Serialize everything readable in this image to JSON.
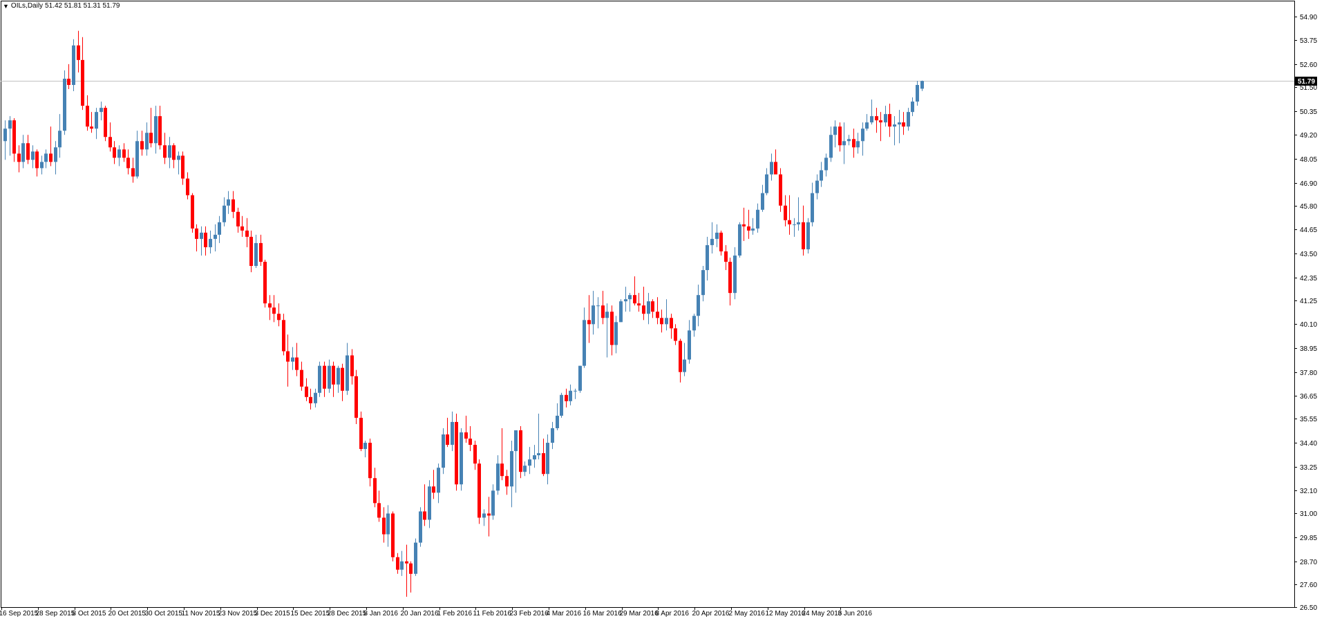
{
  "header": {
    "collapse_icon": "triangle-down-icon",
    "symbol_label": "OILs,Daily",
    "ohlc_text": "51.42 51.81 51.31 51.79"
  },
  "colors": {
    "bull": "#4682B4",
    "bear": "#FF0000",
    "price_line": "#C0C0C0",
    "axis": "#000000",
    "background": "#FFFFFF"
  },
  "chart_data": {
    "type": "candlestick",
    "symbol": "OILs",
    "timeframe": "Daily",
    "last_price": 51.79,
    "last_price_label": "51.79",
    "ylim": [
      26.5,
      55.65
    ],
    "y_ticks": [
      "54.90",
      "53.75",
      "52.60",
      "51.50",
      "50.35",
      "49.20",
      "48.05",
      "46.90",
      "45.80",
      "44.65",
      "43.50",
      "42.35",
      "41.25",
      "40.10",
      "38.95",
      "37.80",
      "36.65",
      "35.55",
      "34.40",
      "33.25",
      "32.10",
      "31.00",
      "29.85",
      "28.70",
      "27.60",
      "26.50"
    ],
    "x_ticks": [
      {
        "label": "16 Sep 2015",
        "index": 0
      },
      {
        "label": "28 Sep 2015",
        "index": 8
      },
      {
        "label": "8 Oct 2015",
        "index": 16
      },
      {
        "label": "20 Oct 2015",
        "index": 24
      },
      {
        "label": "30 Oct 2015",
        "index": 32
      },
      {
        "label": "11 Nov 2015",
        "index": 40
      },
      {
        "label": "23 Nov 2015",
        "index": 48
      },
      {
        "label": "3 Dec 2015",
        "index": 56
      },
      {
        "label": "15 Dec 2015",
        "index": 64
      },
      {
        "label": "28 Dec 2015",
        "index": 72
      },
      {
        "label": "8 Jan 2016",
        "index": 80
      },
      {
        "label": "20 Jan 2016",
        "index": 88
      },
      {
        "label": "1 Feb 2016",
        "index": 96
      },
      {
        "label": "11 Feb 2016",
        "index": 104
      },
      {
        "label": "23 Feb 2016",
        "index": 112
      },
      {
        "label": "4 Mar 2016",
        "index": 120
      },
      {
        "label": "16 Mar 2016",
        "index": 128
      },
      {
        "label": "29 Mar 2016",
        "index": 136
      },
      {
        "label": "8 Apr 2016",
        "index": 144
      },
      {
        "label": "20 Apr 2016",
        "index": 152
      },
      {
        "label": "2 May 2016",
        "index": 160
      },
      {
        "label": "12 May 2016",
        "index": 168
      },
      {
        "label": "24 May 2016",
        "index": 176
      },
      {
        "label": "3 Jun 2016",
        "index": 184
      }
    ],
    "candles": [
      [
        48.9,
        49.9,
        48.0,
        49.5
      ],
      [
        49.5,
        50.1,
        48.2,
        49.9
      ],
      [
        49.9,
        50.0,
        47.9,
        48.3
      ],
      [
        48.3,
        48.7,
        47.4,
        47.9
      ],
      [
        47.9,
        49.2,
        47.6,
        48.8
      ],
      [
        48.8,
        49.2,
        47.8,
        48.0
      ],
      [
        48.0,
        48.7,
        47.6,
        48.4
      ],
      [
        48.4,
        48.5,
        47.2,
        47.6
      ],
      [
        47.6,
        48.2,
        47.3,
        47.9
      ],
      [
        47.9,
        48.5,
        47.6,
        48.3
      ],
      [
        48.3,
        49.6,
        47.7,
        47.9
      ],
      [
        47.9,
        48.9,
        47.3,
        48.6
      ],
      [
        48.6,
        50.2,
        48.1,
        49.4
      ],
      [
        49.4,
        52.3,
        49.2,
        51.9
      ],
      [
        51.9,
        52.6,
        51.4,
        51.6
      ],
      [
        51.6,
        53.8,
        51.3,
        53.5
      ],
      [
        53.5,
        54.2,
        52.2,
        52.8
      ],
      [
        52.8,
        53.9,
        50.4,
        50.6
      ],
      [
        50.6,
        51.1,
        49.4,
        49.6
      ],
      [
        49.6,
        50.3,
        49.3,
        49.5
      ],
      [
        49.5,
        50.5,
        49.0,
        50.3
      ],
      [
        50.3,
        50.8,
        49.9,
        50.5
      ],
      [
        50.5,
        50.6,
        48.9,
        49.1
      ],
      [
        49.1,
        49.8,
        48.4,
        48.6
      ],
      [
        48.6,
        48.9,
        47.8,
        48.1
      ],
      [
        48.1,
        48.7,
        47.7,
        48.5
      ],
      [
        48.5,
        48.8,
        47.9,
        48.1
      ],
      [
        48.1,
        48.5,
        47.3,
        47.6
      ],
      [
        47.6,
        48.1,
        46.9,
        47.2
      ],
      [
        47.2,
        49.4,
        47.1,
        48.9
      ],
      [
        48.9,
        49.4,
        48.2,
        48.5
      ],
      [
        48.5,
        49.8,
        48.2,
        49.3
      ],
      [
        49.3,
        50.5,
        48.6,
        48.8
      ],
      [
        48.8,
        50.6,
        48.3,
        50.1
      ],
      [
        50.1,
        50.6,
        48.5,
        48.7
      ],
      [
        48.7,
        49.3,
        47.8,
        48.1
      ],
      [
        48.1,
        49.1,
        47.6,
        48.7
      ],
      [
        48.7,
        48.8,
        47.6,
        48.0
      ],
      [
        48.0,
        48.4,
        47.3,
        48.2
      ],
      [
        48.2,
        48.4,
        46.8,
        47.1
      ],
      [
        47.1,
        47.4,
        46.1,
        46.3
      ],
      [
        46.3,
        46.4,
        44.5,
        44.7
      ],
      [
        44.7,
        44.9,
        43.6,
        44.2
      ],
      [
        44.2,
        44.8,
        43.4,
        44.5
      ],
      [
        44.5,
        44.8,
        43.4,
        43.8
      ],
      [
        43.8,
        44.6,
        43.5,
        44.2
      ],
      [
        44.2,
        44.9,
        43.6,
        44.4
      ],
      [
        44.4,
        45.3,
        44.0,
        45.0
      ],
      [
        45.0,
        46.2,
        44.8,
        45.8
      ],
      [
        45.8,
        46.5,
        45.4,
        46.1
      ],
      [
        46.1,
        46.5,
        45.2,
        45.5
      ],
      [
        45.5,
        45.7,
        44.5,
        44.8
      ],
      [
        44.8,
        45.3,
        44.3,
        44.6
      ],
      [
        44.6,
        45.2,
        43.8,
        44.3
      ],
      [
        44.3,
        44.6,
        42.6,
        42.9
      ],
      [
        42.9,
        44.4,
        42.8,
        44.0
      ],
      [
        44.0,
        44.4,
        42.9,
        43.1
      ],
      [
        43.1,
        43.2,
        40.9,
        41.1
      ],
      [
        41.1,
        41.5,
        40.3,
        40.9
      ],
      [
        40.9,
        41.5,
        40.2,
        40.6
      ],
      [
        40.6,
        41.1,
        40.0,
        40.3
      ],
      [
        40.3,
        40.6,
        38.6,
        38.8
      ],
      [
        38.8,
        39.6,
        37.1,
        38.3
      ],
      [
        38.3,
        39.0,
        37.9,
        38.5
      ],
      [
        38.5,
        39.2,
        37.6,
        37.9
      ],
      [
        37.9,
        38.3,
        36.9,
        37.1
      ],
      [
        37.1,
        37.5,
        36.4,
        36.6
      ],
      [
        36.6,
        37.0,
        36.0,
        36.3
      ],
      [
        36.3,
        37.0,
        36.1,
        36.8
      ],
      [
        36.8,
        38.3,
        36.6,
        38.1
      ],
      [
        38.1,
        38.3,
        36.6,
        37.0
      ],
      [
        37.0,
        38.4,
        36.8,
        38.1
      ],
      [
        38.1,
        38.3,
        36.6,
        37.2
      ],
      [
        37.2,
        38.1,
        36.8,
        38.0
      ],
      [
        38.0,
        38.2,
        36.4,
        36.9
      ],
      [
        36.9,
        39.2,
        36.7,
        38.6
      ],
      [
        38.6,
        38.9,
        37.2,
        37.6
      ],
      [
        37.6,
        37.9,
        35.3,
        35.6
      ],
      [
        35.6,
        35.9,
        34.0,
        34.1
      ],
      [
        34.1,
        34.5,
        33.7,
        34.4
      ],
      [
        34.4,
        34.6,
        32.3,
        32.7
      ],
      [
        32.7,
        33.2,
        31.3,
        31.5
      ],
      [
        31.5,
        32.1,
        30.6,
        30.8
      ],
      [
        30.8,
        31.3,
        29.6,
        30.0
      ],
      [
        30.0,
        31.4,
        29.4,
        31.0
      ],
      [
        31.0,
        31.1,
        28.7,
        28.9
      ],
      [
        28.9,
        29.1,
        28.1,
        28.3
      ],
      [
        28.3,
        29.2,
        28.0,
        28.7
      ],
      [
        28.7,
        29.5,
        27.0,
        28.6
      ],
      [
        28.6,
        28.7,
        27.2,
        28.1
      ],
      [
        28.1,
        29.8,
        28.0,
        29.6
      ],
      [
        29.6,
        31.3,
        29.4,
        31.1
      ],
      [
        31.1,
        32.4,
        30.4,
        30.7
      ],
      [
        30.7,
        32.6,
        30.3,
        32.3
      ],
      [
        32.3,
        33.1,
        31.7,
        32.0
      ],
      [
        32.0,
        33.4,
        31.5,
        33.2
      ],
      [
        33.2,
        35.1,
        32.9,
        34.8
      ],
      [
        34.8,
        35.6,
        34.2,
        34.3
      ],
      [
        34.3,
        35.9,
        34.0,
        35.4
      ],
      [
        35.4,
        35.8,
        32.1,
        32.4
      ],
      [
        32.4,
        35.1,
        32.1,
        34.9
      ],
      [
        34.9,
        35.7,
        34.4,
        34.6
      ],
      [
        34.6,
        35.2,
        34.0,
        34.3
      ],
      [
        34.3,
        34.5,
        33.1,
        33.4
      ],
      [
        33.4,
        33.6,
        30.5,
        30.8
      ],
      [
        30.8,
        31.2,
        30.4,
        31.0
      ],
      [
        31.0,
        31.8,
        29.9,
        30.9
      ],
      [
        30.9,
        32.4,
        30.7,
        32.1
      ],
      [
        32.1,
        33.8,
        31.9,
        33.4
      ],
      [
        33.4,
        35.1,
        32.6,
        32.8
      ],
      [
        32.8,
        33.1,
        31.9,
        32.3
      ],
      [
        32.3,
        34.5,
        31.3,
        34.0
      ],
      [
        34.0,
        35.0,
        32.0,
        35.0
      ],
      [
        35.0,
        35.2,
        32.7,
        33.0
      ],
      [
        33.0,
        33.5,
        32.8,
        33.3
      ],
      [
        33.3,
        34.2,
        32.9,
        33.6
      ],
      [
        33.6,
        34.3,
        33.2,
        33.8
      ],
      [
        33.8,
        35.8,
        33.6,
        33.9
      ],
      [
        33.9,
        34.6,
        32.8,
        32.9
      ],
      [
        32.9,
        34.8,
        32.4,
        34.4
      ],
      [
        34.4,
        35.4,
        34.1,
        35.1
      ],
      [
        35.1,
        36.3,
        35.0,
        35.7
      ],
      [
        35.7,
        36.8,
        35.6,
        36.7
      ],
      [
        36.7,
        37.0,
        36.1,
        36.4
      ],
      [
        36.4,
        37.2,
        36.2,
        36.9
      ],
      [
        36.9,
        37.0,
        36.5,
        36.9
      ],
      [
        36.9,
        38.1,
        36.8,
        38.1
      ],
      [
        38.1,
        40.9,
        38.0,
        40.3
      ],
      [
        40.3,
        41.5,
        39.2,
        40.1
      ],
      [
        40.1,
        41.7,
        39.6,
        41.0
      ],
      [
        41.0,
        41.4,
        39.9,
        41.0
      ],
      [
        41.0,
        41.7,
        40.1,
        40.4
      ],
      [
        40.4,
        41.1,
        38.5,
        40.7
      ],
      [
        40.7,
        41.0,
        38.6,
        39.1
      ],
      [
        39.1,
        40.5,
        38.7,
        40.2
      ],
      [
        40.2,
        41.3,
        40.2,
        41.2
      ],
      [
        41.2,
        41.9,
        40.7,
        41.3
      ],
      [
        41.3,
        41.6,
        40.7,
        41.5
      ],
      [
        41.5,
        42.4,
        41.0,
        41.1
      ],
      [
        41.1,
        41.6,
        40.7,
        41.0
      ],
      [
        41.0,
        41.9,
        40.3,
        40.6
      ],
      [
        40.6,
        41.6,
        40.1,
        41.2
      ],
      [
        41.2,
        41.3,
        40.4,
        40.7
      ],
      [
        40.7,
        41.4,
        40.1,
        40.4
      ],
      [
        40.4,
        40.8,
        39.7,
        40.1
      ],
      [
        40.1,
        41.3,
        39.8,
        40.4
      ],
      [
        40.4,
        40.6,
        39.4,
        39.9
      ],
      [
        39.9,
        40.1,
        39.1,
        39.3
      ],
      [
        39.3,
        39.4,
        37.3,
        37.8
      ],
      [
        37.8,
        39.2,
        37.6,
        38.4
      ],
      [
        38.4,
        40.3,
        38.2,
        39.8
      ],
      [
        39.8,
        40.6,
        39.5,
        40.5
      ],
      [
        40.5,
        42.0,
        40.0,
        41.5
      ],
      [
        41.5,
        42.9,
        41.2,
        42.7
      ],
      [
        42.7,
        44.3,
        42.2,
        43.9
      ],
      [
        43.9,
        45.0,
        43.5,
        44.2
      ],
      [
        44.2,
        44.9,
        43.8,
        44.5
      ],
      [
        44.5,
        44.6,
        43.4,
        43.6
      ],
      [
        43.6,
        43.9,
        42.7,
        43.1
      ],
      [
        43.1,
        43.3,
        41.0,
        41.6
      ],
      [
        41.6,
        43.8,
        41.3,
        43.4
      ],
      [
        43.4,
        45.0,
        43.3,
        44.9
      ],
      [
        44.9,
        45.7,
        44.1,
        44.8
      ],
      [
        44.8,
        45.6,
        44.2,
        44.6
      ],
      [
        44.6,
        45.2,
        44.4,
        44.7
      ],
      [
        44.7,
        45.9,
        44.5,
        45.6
      ],
      [
        45.6,
        46.8,
        45.5,
        46.4
      ],
      [
        46.4,
        47.6,
        46.3,
        47.3
      ],
      [
        47.3,
        48.3,
        47.0,
        47.9
      ],
      [
        47.9,
        48.5,
        47.5,
        47.3
      ],
      [
        47.3,
        47.6,
        45.5,
        45.8
      ],
      [
        45.8,
        46.3,
        44.8,
        45.1
      ],
      [
        45.1,
        46.3,
        44.4,
        44.9
      ],
      [
        44.9,
        45.2,
        44.3,
        44.9
      ],
      [
        44.9,
        46.2,
        44.6,
        45.0
      ],
      [
        45.0,
        45.8,
        43.4,
        43.7
      ],
      [
        43.7,
        45.2,
        43.5,
        45.0
      ],
      [
        45.0,
        46.9,
        44.8,
        46.4
      ],
      [
        46.4,
        47.3,
        46.1,
        47.0
      ],
      [
        47.0,
        47.9,
        46.7,
        47.5
      ],
      [
        47.5,
        48.3,
        47.2,
        48.1
      ],
      [
        48.1,
        49.6,
        47.9,
        49.2
      ],
      [
        49.2,
        49.9,
        48.6,
        49.6
      ],
      [
        49.6,
        49.8,
        48.4,
        48.7
      ],
      [
        48.7,
        49.8,
        47.8,
        48.9
      ],
      [
        48.9,
        49.2,
        48.7,
        49.0
      ],
      [
        49.0,
        49.5,
        48.1,
        48.6
      ],
      [
        48.6,
        49.3,
        48.3,
        48.9
      ],
      [
        48.9,
        49.8,
        48.2,
        49.5
      ],
      [
        49.5,
        50.2,
        49.4,
        49.8
      ],
      [
        49.8,
        50.9,
        49.7,
        50.1
      ],
      [
        50.1,
        50.5,
        49.3,
        49.9
      ],
      [
        49.9,
        50.3,
        48.9,
        49.8
      ],
      [
        49.8,
        50.6,
        49.6,
        50.2
      ],
      [
        50.2,
        50.7,
        49.1,
        49.6
      ],
      [
        49.6,
        50.1,
        48.7,
        49.7
      ],
      [
        49.7,
        50.4,
        48.8,
        49.8
      ],
      [
        49.8,
        50.3,
        49.2,
        49.6
      ],
      [
        49.6,
        50.5,
        49.4,
        50.3
      ],
      [
        50.3,
        51.0,
        50.1,
        50.8
      ],
      [
        50.8,
        51.8,
        50.6,
        51.6
      ],
      [
        51.42,
        51.81,
        51.31,
        51.79
      ]
    ]
  }
}
